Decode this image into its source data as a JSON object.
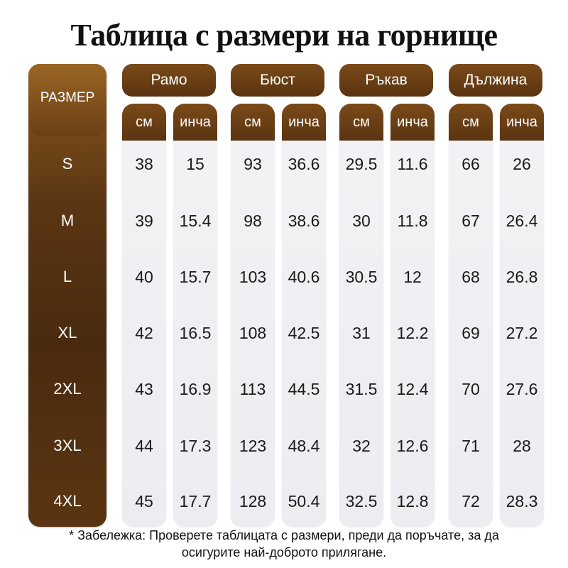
{
  "title": "Таблица с размери на горнище",
  "size_header": "РАЗМЕР",
  "groups": [
    {
      "label": "Рамо"
    },
    {
      "label": "Бюст"
    },
    {
      "label": "Ръкав"
    },
    {
      "label": "Дължина"
    }
  ],
  "units": {
    "cm": "см",
    "inch": "инча"
  },
  "rows": [
    {
      "size": "S",
      "values": [
        "38",
        "15",
        "93",
        "36.6",
        "29.5",
        "11.6",
        "66",
        "26"
      ]
    },
    {
      "size": "M",
      "values": [
        "39",
        "15.4",
        "98",
        "38.6",
        "30",
        "11.8",
        "67",
        "26.4"
      ]
    },
    {
      "size": "L",
      "values": [
        "40",
        "15.7",
        "103",
        "40.6",
        "30.5",
        "12",
        "68",
        "26.8"
      ]
    },
    {
      "size": "XL",
      "values": [
        "42",
        "16.5",
        "108",
        "42.5",
        "31",
        "12.2",
        "69",
        "27.2"
      ]
    },
    {
      "size": "2XL",
      "values": [
        "43",
        "16.9",
        "113",
        "44.5",
        "31.5",
        "12.4",
        "70",
        "27.6"
      ]
    },
    {
      "size": "3XL",
      "values": [
        "44",
        "17.3",
        "123",
        "48.4",
        "32",
        "12.6",
        "71",
        "28"
      ]
    },
    {
      "size": "4XL",
      "values": [
        "45",
        "17.7",
        "128",
        "50.4",
        "32.5",
        "12.8",
        "72",
        "28.3"
      ]
    }
  ],
  "note_line1": "* Забележка: Проверете таблицата с размери, преди да поръчате, за да",
  "note_line2": "осигурите най-доброто прилягане.",
  "colors": {
    "header_brown": "#5a3311",
    "panel_gray": "#efeff3",
    "text_dark": "#1a1a1a"
  }
}
